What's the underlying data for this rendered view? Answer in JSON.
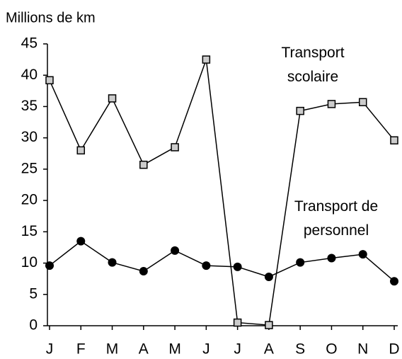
{
  "chart_data": {
    "type": "line",
    "y_label": "Millions de km",
    "categories": [
      "J",
      "F",
      "M",
      "A",
      "M",
      "J",
      "J",
      "A",
      "S",
      "O",
      "N",
      "D"
    ],
    "series": [
      {
        "name": "Transport scolaire",
        "color": "#000000",
        "marker": "square",
        "values": [
          39.2,
          28,
          36.3,
          25.7,
          28.5,
          42.5,
          0.5,
          0.1,
          34.3,
          35.4,
          35.7,
          29.6
        ]
      },
      {
        "name": "Transport de personnel",
        "color": "#000000",
        "marker": "circle",
        "values": [
          9.6,
          13.5,
          10.1,
          8.7,
          12,
          9.6,
          9.4,
          7.8,
          10.1,
          10.8,
          11.4,
          7.1
        ]
      }
    ],
    "ylim": [
      0,
      45
    ],
    "yticks": [
      0,
      5,
      10,
      15,
      20,
      25,
      30,
      35,
      40,
      45
    ],
    "grid": false
  }
}
